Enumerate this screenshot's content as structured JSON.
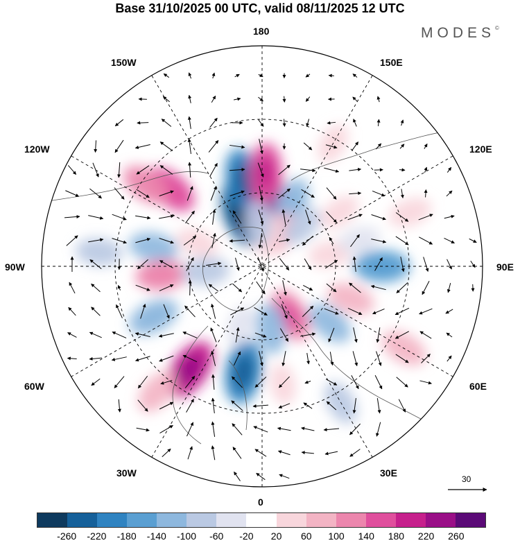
{
  "title": "Base 31/10/2025 00 UTC, valid 08/11/2025 12 UTC",
  "logo": "MODES",
  "logo_mark": "©",
  "longitude_labels": {
    "top": "180",
    "bottom": "0",
    "left": "90W",
    "right": "90E",
    "upper_left": "150W",
    "upper_right": "150E",
    "mid_upper_left": "120W",
    "mid_upper_right": "120E",
    "lower_left": "60W",
    "lower_right": "60E",
    "bottom_left": "30W",
    "bottom_right": "30E"
  },
  "vector_scale": {
    "label": "30"
  },
  "colorbar": {
    "ticks": [
      "-260",
      "-220",
      "-180",
      "-140",
      "-100",
      "-60",
      "-20",
      "20",
      "60",
      "100",
      "140",
      "180",
      "220",
      "260"
    ],
    "colors": [
      "#0e3a5e",
      "#15609a",
      "#2f83c1",
      "#5a9fd2",
      "#8eb8de",
      "#bac9e3",
      "#e1e3f0",
      "#ffffff",
      "#f8d6dc",
      "#f3b4c4",
      "#ec86ad",
      "#e04f9d",
      "#c6208c",
      "#9a0f87",
      "#5b0a77"
    ]
  },
  "anomaly_blobs": [
    {
      "lat": 72,
      "lon": -160,
      "value": -240
    },
    {
      "lat": 62,
      "lon": -168,
      "value": -200
    },
    {
      "lat": 70,
      "lon": 175,
      "value": 210
    },
    {
      "lat": 60,
      "lon": 178,
      "value": 160
    },
    {
      "lat": 52,
      "lon": -130,
      "value": 150
    },
    {
      "lat": 45,
      "lon": -125,
      "value": 110
    },
    {
      "lat": 68,
      "lon": 155,
      "value": -120
    },
    {
      "lat": 78,
      "lon": 150,
      "value": 70
    },
    {
      "lat": 80,
      "lon": 170,
      "value": 60
    },
    {
      "lat": 76,
      "lon": -175,
      "value": -70
    },
    {
      "lat": 72,
      "lon": 135,
      "value": -60
    },
    {
      "lat": 60,
      "lon": 125,
      "value": 50
    },
    {
      "lat": 40,
      "lon": 110,
      "value": 60
    },
    {
      "lat": 55,
      "lon": -100,
      "value": -100
    },
    {
      "lat": 38,
      "lon": -95,
      "value": -80
    },
    {
      "lat": 58,
      "lon": -85,
      "value": 120
    },
    {
      "lat": 68,
      "lon": -110,
      "value": 50
    },
    {
      "lat": 72,
      "lon": -85,
      "value": -90
    },
    {
      "lat": 52,
      "lon": -65,
      "value": -120
    },
    {
      "lat": 50,
      "lon": -35,
      "value": 200
    },
    {
      "lat": 38,
      "lon": -40,
      "value": 80
    },
    {
      "lat": 56,
      "lon": -10,
      "value": -210
    },
    {
      "lat": 70,
      "lon": -20,
      "value": -40
    },
    {
      "lat": 72,
      "lon": 30,
      "value": 140
    },
    {
      "lat": 70,
      "lon": 8,
      "value": -110
    },
    {
      "lat": 62,
      "lon": 50,
      "value": -100
    },
    {
      "lat": 60,
      "lon": 70,
      "value": 90
    },
    {
      "lat": 52,
      "lon": 90,
      "value": -150
    },
    {
      "lat": 38,
      "lon": 60,
      "value": 90
    },
    {
      "lat": 40,
      "lon": 30,
      "value": -70
    },
    {
      "lat": 52,
      "lon": 10,
      "value": 40
    },
    {
      "lat": 68,
      "lon": 100,
      "value": 60
    },
    {
      "lat": 58,
      "lon": 105,
      "value": -50
    },
    {
      "lat": 45,
      "lon": 150,
      "value": 40
    }
  ]
}
